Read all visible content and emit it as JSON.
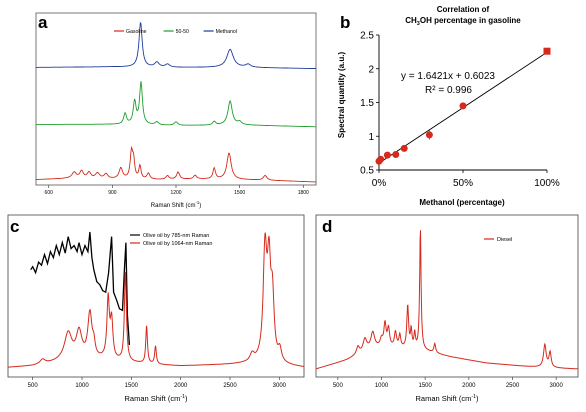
{
  "panels": {
    "a": {
      "letter": "a"
    },
    "b": {
      "letter": "b"
    },
    "c": {
      "letter": "c"
    },
    "d": {
      "letter": "d"
    }
  },
  "colors": {
    "red": "#d62a1e",
    "green": "#1f9e2c",
    "blue": "#1f3d9c",
    "black": "#000000"
  },
  "chart_data": [
    {
      "panel": "a",
      "type": "line",
      "xlabel": "Raman Shift (cm",
      "xlabel_sup": "-1",
      "xlabel_end": ")",
      "ylabel": "",
      "xlim": [
        540,
        1860
      ],
      "xticks": [
        600,
        900,
        1200,
        1500,
        1800
      ],
      "legend_position": "top-center",
      "series": [
        {
          "name": "Gasoline",
          "color": "#d62a1e",
          "offset": 0,
          "baseline": [
            [
              540,
              0.04
            ],
            [
              700,
              0.06
            ],
            [
              900,
              0.05
            ],
            [
              1100,
              0.04
            ],
            [
              1300,
              0.05
            ],
            [
              1500,
              0.04
            ],
            [
              1700,
              0.02
            ],
            [
              1860,
              0.0
            ]
          ],
          "peaks": [
            [
              720,
              0.1,
              12
            ],
            [
              755,
              0.12,
              10
            ],
            [
              790,
              0.1,
              10
            ],
            [
              830,
              0.09,
              12
            ],
            [
              870,
              0.08,
              10
            ],
            [
              940,
              0.18,
              10
            ],
            [
              990,
              0.44,
              7
            ],
            [
              1000,
              0.28,
              6
            ],
            [
              1030,
              0.22,
              6
            ],
            [
              1070,
              0.1,
              8
            ],
            [
              1160,
              0.06,
              8
            ],
            [
              1210,
              0.12,
              8
            ],
            [
              1290,
              0.06,
              8
            ],
            [
              1380,
              0.18,
              7
            ],
            [
              1450,
              0.44,
              12
            ],
            [
              1620,
              0.08,
              10
            ]
          ]
        },
        {
          "name": "50-50",
          "color": "#1f9e2c",
          "offset": 0.9,
          "baseline": [
            [
              540,
              0.06
            ],
            [
              900,
              0.06
            ],
            [
              1200,
              0.04
            ],
            [
              1500,
              0.05
            ],
            [
              1860,
              0.02
            ]
          ],
          "peaks": [
            [
              960,
              0.18,
              8
            ],
            [
              1005,
              0.38,
              8
            ],
            [
              1035,
              0.7,
              8
            ],
            [
              1110,
              0.05,
              10
            ],
            [
              1200,
              0.06,
              10
            ],
            [
              1380,
              0.06,
              8
            ],
            [
              1455,
              0.4,
              12
            ],
            [
              1500,
              0.05,
              10
            ]
          ]
        },
        {
          "name": "Methanol",
          "color": "#1f3d9c",
          "offset": 1.85,
          "baseline": [
            [
              540,
              0.06
            ],
            [
              900,
              0.07
            ],
            [
              1200,
              0.06
            ],
            [
              1500,
              0.06
            ],
            [
              1860,
              0.04
            ]
          ],
          "peaks": [
            [
              1033,
              0.75,
              9
            ],
            [
              1110,
              0.08,
              12
            ],
            [
              1160,
              0.05,
              12
            ],
            [
              1455,
              0.3,
              18
            ],
            [
              1540,
              0.05,
              14
            ]
          ]
        }
      ]
    },
    {
      "panel": "b",
      "type": "scatter",
      "title_line1": "Correlation of",
      "title_line2_pre": "CH",
      "title_line2_sub": "3",
      "title_line2_post": "OH percentage in gasoline",
      "xlabel": "Methanol (percentage)",
      "ylabel": "Spectral quantity (a.u.)",
      "xlim": [
        0,
        100
      ],
      "ylim": [
        0.5,
        2.5
      ],
      "xticks": [
        0,
        50,
        100
      ],
      "xtick_labels": [
        "0%",
        "50%",
        "100%"
      ],
      "yticks": [
        0.5,
        1,
        1.5,
        2,
        2.5
      ],
      "ytick_labels": [
        "0.5",
        "1",
        "1.5",
        "2",
        "2.5"
      ],
      "equation": "y = 1.6421x + 0.6023",
      "r2": "R² = 0.996",
      "fit": {
        "slope": 1.6421,
        "intercept": 0.6023
      },
      "points": [
        {
          "x": 0,
          "y": 0.63,
          "err": 0.03
        },
        {
          "x": 1,
          "y": 0.66,
          "err": 0.03
        },
        {
          "x": 5,
          "y": 0.72,
          "err": 0.04
        },
        {
          "x": 10,
          "y": 0.73,
          "err": 0.05
        },
        {
          "x": 15,
          "y": 0.82,
          "err": 0.03
        },
        {
          "x": 30,
          "y": 1.02,
          "err": 0.07
        },
        {
          "x": 50,
          "y": 1.45,
          "err": 0.02
        },
        {
          "x": 100,
          "y": 2.26,
          "err": 0.02
        }
      ],
      "last_point_square": true
    },
    {
      "panel": "c",
      "type": "line",
      "xlabel": "Raman Shift (cm",
      "xlabel_sup": "-1",
      "xlabel_end": ")",
      "xlim": [
        250,
        3250
      ],
      "xticks": [
        500,
        1000,
        1500,
        2000,
        2500,
        3000
      ],
      "ylim": [
        0,
        1.05
      ],
      "legend_position": "top-right",
      "series": [
        {
          "name": "Olive oil by 785-nm Raman",
          "color": "#000000",
          "points": [
            [
              480,
              0.7
            ],
            [
              500,
              0.72
            ],
            [
              530,
              0.68
            ],
            [
              560,
              0.75
            ],
            [
              590,
              0.73
            ],
            [
              620,
              0.8
            ],
            [
              650,
              0.74
            ],
            [
              680,
              0.82
            ],
            [
              710,
              0.78
            ],
            [
              740,
              0.86
            ],
            [
              770,
              0.8
            ],
            [
              800,
              0.88
            ],
            [
              830,
              0.81
            ],
            [
              860,
              0.92
            ],
            [
              890,
              0.84
            ],
            [
              920,
              0.86
            ],
            [
              950,
              0.82
            ],
            [
              970,
              0.88
            ],
            [
              1000,
              0.8
            ],
            [
              1030,
              0.86
            ],
            [
              1060,
              0.82
            ],
            [
              1080,
              0.95
            ],
            [
              1100,
              0.78
            ],
            [
              1120,
              0.7
            ],
            [
              1150,
              0.62
            ],
            [
              1180,
              0.6
            ],
            [
              1210,
              0.56
            ],
            [
              1240,
              0.55
            ],
            [
              1270,
              0.68
            ],
            [
              1300,
              0.92
            ],
            [
              1320,
              0.55
            ],
            [
              1350,
              0.5
            ],
            [
              1380,
              0.44
            ],
            [
              1410,
              0.43
            ],
            [
              1430,
              0.7
            ],
            [
              1445,
              0.88
            ],
            [
              1460,
              0.4
            ],
            [
              1480,
              0.2
            ]
          ]
        },
        {
          "name": "Olive oil by 1064-nm Raman",
          "color": "#d62a1e",
          "baseline": [
            [
              250,
              0.05
            ],
            [
              500,
              0.06
            ],
            [
              800,
              0.09
            ],
            [
              1200,
              0.1
            ],
            [
              1700,
              0.07
            ],
            [
              2000,
              0.06
            ],
            [
              2500,
              0.07
            ],
            [
              2800,
              0.08
            ],
            [
              3250,
              0.05
            ]
          ],
          "peaks": [
            [
              600,
              0.03,
              30
            ],
            [
              860,
              0.18,
              45
            ],
            [
              970,
              0.18,
              35
            ],
            [
              1080,
              0.3,
              25
            ],
            [
              1120,
              0.08,
              15
            ],
            [
              1265,
              0.4,
              15
            ],
            [
              1300,
              0.25,
              15
            ],
            [
              1440,
              0.6,
              12
            ],
            [
              1655,
              0.25,
              10
            ],
            [
              1745,
              0.12,
              10
            ],
            [
              2725,
              0.05,
              25
            ],
            [
              2855,
              0.72,
              22
            ],
            [
              2895,
              0.58,
              20
            ],
            [
              2930,
              0.4,
              20
            ],
            [
              3005,
              0.08,
              20
            ]
          ]
        }
      ]
    },
    {
      "panel": "d",
      "type": "line",
      "xlabel": "Raman Shift (cm",
      "xlabel_sup": "-1",
      "xlabel_end": ")",
      "xlim": [
        250,
        3250
      ],
      "xticks": [
        500,
        1000,
        1500,
        2000,
        2500,
        3000
      ],
      "ylim": [
        0,
        1.05
      ],
      "legend_position": "top-right",
      "series": [
        {
          "name": "Diesel",
          "color": "#d62a1e",
          "baseline": [
            [
              250,
              0.04
            ],
            [
              600,
              0.1
            ],
            [
              900,
              0.18
            ],
            [
              1200,
              0.18
            ],
            [
              1500,
              0.16
            ],
            [
              1800,
              0.12
            ],
            [
              2200,
              0.08
            ],
            [
              2600,
              0.06
            ],
            [
              2850,
              0.05
            ],
            [
              3250,
              0.04
            ]
          ],
          "peaks": [
            [
              730,
              0.05,
              20
            ],
            [
              810,
              0.08,
              25
            ],
            [
              900,
              0.1,
              25
            ],
            [
              1000,
              0.05,
              20
            ],
            [
              1040,
              0.15,
              15
            ],
            [
              1080,
              0.12,
              15
            ],
            [
              1160,
              0.1,
              15
            ],
            [
              1210,
              0.08,
              12
            ],
            [
              1300,
              0.28,
              12
            ],
            [
              1340,
              0.12,
              10
            ],
            [
              1380,
              0.1,
              10
            ],
            [
              1445,
              0.8,
              10
            ],
            [
              1610,
              0.06,
              12
            ],
            [
              2870,
              0.15,
              18
            ],
            [
              2930,
              0.1,
              15
            ]
          ]
        }
      ]
    }
  ]
}
